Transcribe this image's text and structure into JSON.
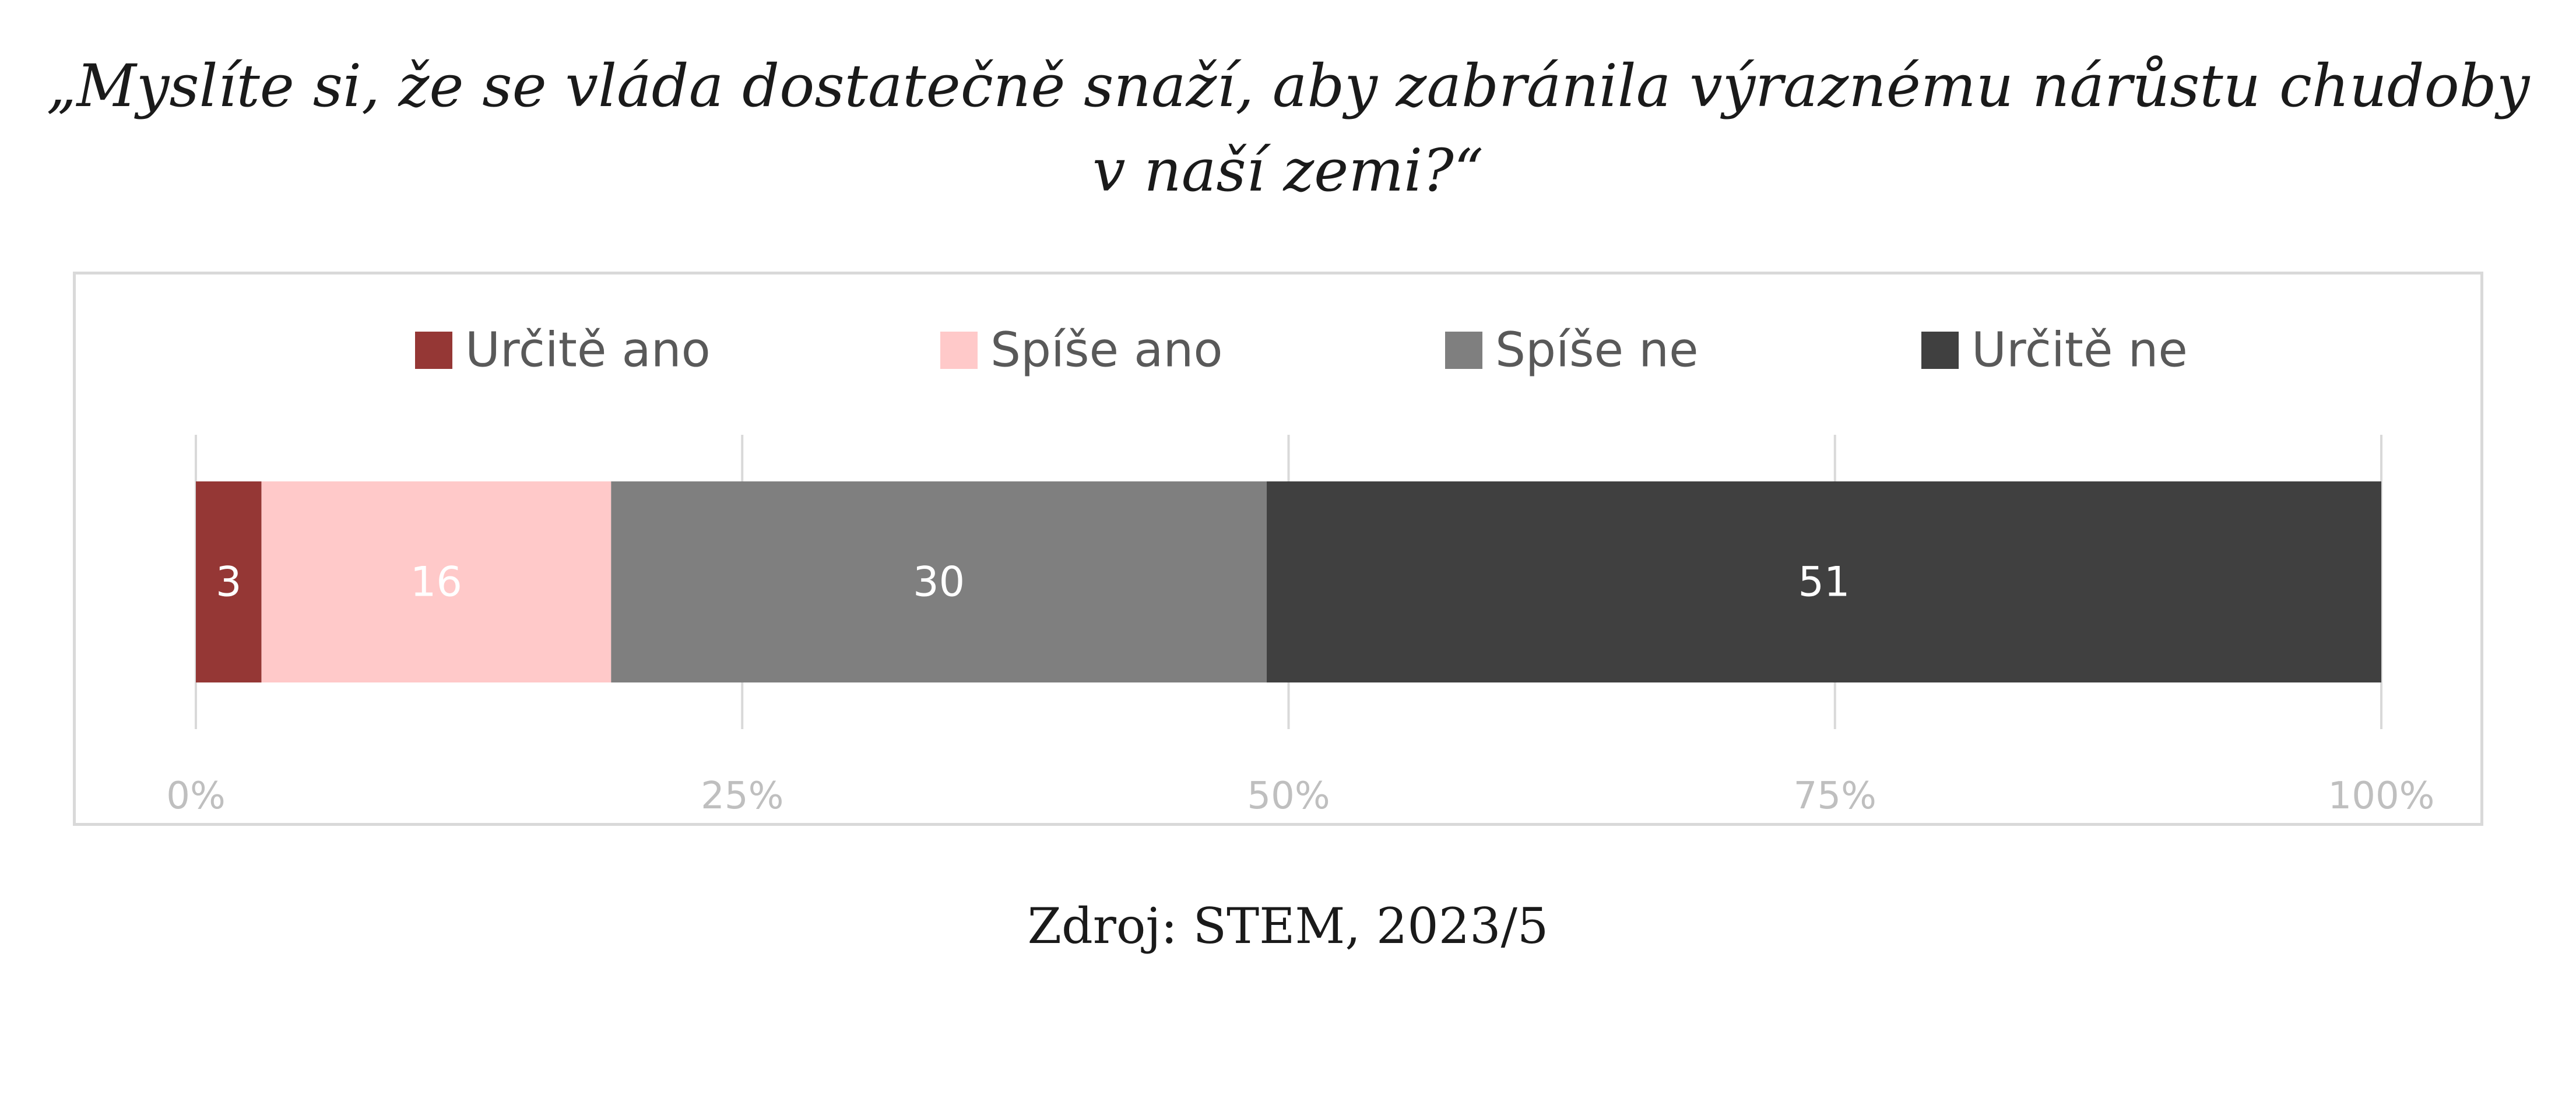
{
  "title_lines": [
    "„Myslíte si, že se vláda dostatečně snaží, aby zabránila výraznému nárůstu chudoby",
    "v naší zemi?“"
  ],
  "source": "Zdroj: STEM, 2023/5",
  "chart_data": {
    "type": "bar",
    "orientation": "horizontal",
    "stacked": true,
    "series": [
      {
        "name": "Určitě ano",
        "values": [
          3
        ],
        "color": "#953735"
      },
      {
        "name": "Spíše ano",
        "values": [
          16
        ],
        "color": "#ffc9c9"
      },
      {
        "name": "Spíše ne",
        "values": [
          30
        ],
        "color": "#7f7f7f"
      },
      {
        "name": "Určitě ne",
        "values": [
          51
        ],
        "color": "#404040"
      }
    ],
    "data_labels": [
      "3",
      "16",
      "30",
      "51"
    ],
    "xlim": [
      0,
      100
    ],
    "x_ticks": [
      0,
      25,
      50,
      75,
      100
    ],
    "x_tick_labels": [
      "0%",
      "25%",
      "50%",
      "75%",
      "100%"
    ],
    "legend_position": "top",
    "grid": "vertical",
    "gridline_color": "#d9d9d9",
    "tick_label_color": "#bfbfbf",
    "label_color": "#ffffff",
    "legend_text_color": "#595959"
  }
}
